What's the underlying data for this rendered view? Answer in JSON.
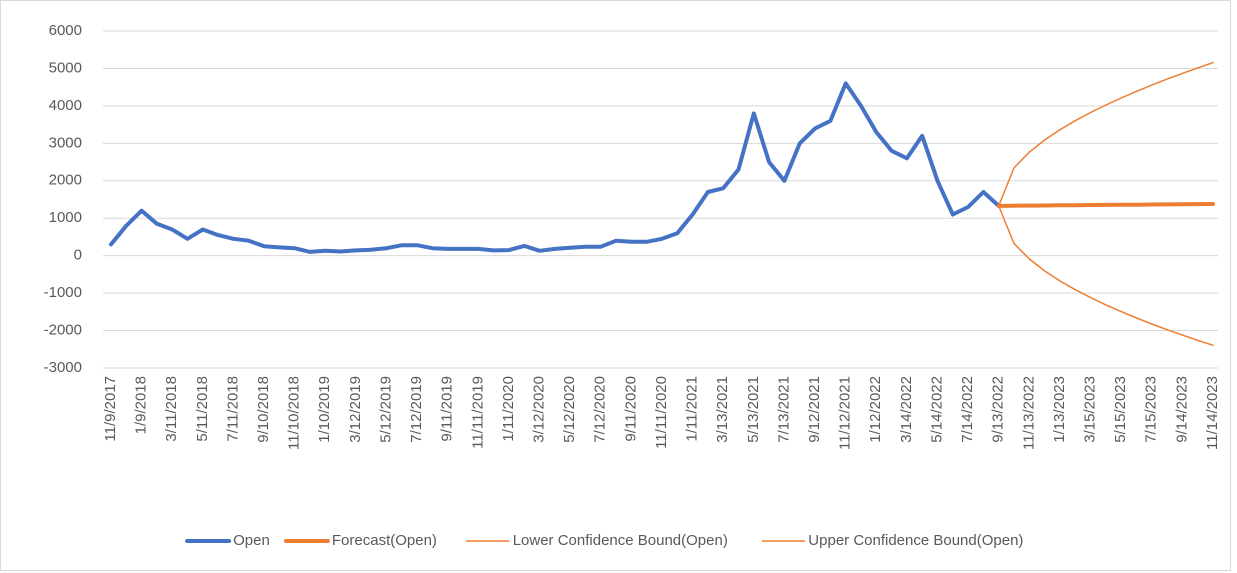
{
  "chart_data": {
    "type": "line",
    "categories": [
      "11/9/2017",
      null,
      "1/9/2018",
      null,
      "3/11/2018",
      null,
      "5/11/2018",
      null,
      "7/11/2018",
      null,
      "9/10/2018",
      null,
      "11/10/2018",
      null,
      "1/10/2019",
      null,
      "3/12/2019",
      null,
      "5/12/2019",
      null,
      "7/12/2019",
      null,
      "9/11/2019",
      null,
      "11/11/2019",
      null,
      "1/11/2020",
      null,
      "3/12/2020",
      null,
      "5/12/2020",
      null,
      "7/12/2020",
      null,
      "9/11/2020",
      null,
      "11/11/2020",
      null,
      "1/11/2021",
      null,
      "3/13/2021",
      null,
      "5/13/2021",
      null,
      "7/13/2021",
      null,
      "9/12/2021",
      null,
      "11/12/2021",
      null,
      "1/12/2022",
      null,
      "3/14/2022",
      null,
      "5/14/2022",
      null,
      "7/14/2022",
      null,
      "9/13/2022",
      null,
      "11/13/2022",
      null,
      "1/13/2023",
      null,
      "3/15/2023",
      null,
      "5/15/2023",
      null,
      "7/15/2023",
      null,
      "9/14/2023",
      null,
      "11/14/2023"
    ],
    "series": [
      {
        "name": "Open",
        "color": "#4472c4",
        "width": 4,
        "values": [
          300,
          800,
          1200,
          850,
          700,
          450,
          700,
          550,
          450,
          400,
          250,
          220,
          200,
          100,
          130,
          110,
          140,
          160,
          200,
          280,
          280,
          200,
          180,
          180,
          180,
          140,
          150,
          260,
          130,
          180,
          210,
          240,
          240,
          400,
          370,
          370,
          450,
          600,
          1100,
          1700,
          1800,
          2300,
          3800,
          2500,
          2000,
          3000,
          3400,
          3600,
          4600,
          4000,
          3300,
          2800,
          2600,
          3200,
          2000,
          1100,
          1300,
          1700,
          1330,
          null,
          null,
          null,
          null,
          null,
          null,
          null,
          null,
          null,
          null,
          null,
          null,
          null,
          null
        ]
      },
      {
        "name": "Forecast(Open)",
        "color": "#ed7d31",
        "width": 4,
        "values": [
          null,
          null,
          null,
          null,
          null,
          null,
          null,
          null,
          null,
          null,
          null,
          null,
          null,
          null,
          null,
          null,
          null,
          null,
          null,
          null,
          null,
          null,
          null,
          null,
          null,
          null,
          null,
          null,
          null,
          null,
          null,
          null,
          null,
          null,
          null,
          null,
          null,
          null,
          null,
          null,
          null,
          null,
          null,
          null,
          null,
          null,
          null,
          null,
          null,
          null,
          null,
          null,
          null,
          null,
          null,
          null,
          null,
          null,
          1330,
          1334,
          1337,
          1341,
          1344,
          1348,
          1352,
          1355,
          1359,
          1362,
          1366,
          1370,
          1373,
          1377,
          1380
        ]
      },
      {
        "name": "Lower Confidence Bound(Open)",
        "color": "#ed7d31",
        "width": 1.5,
        "values": [
          null,
          null,
          null,
          null,
          null,
          null,
          null,
          null,
          null,
          null,
          null,
          null,
          null,
          null,
          null,
          null,
          null,
          null,
          null,
          null,
          null,
          null,
          null,
          null,
          null,
          null,
          null,
          null,
          null,
          null,
          null,
          null,
          null,
          null,
          null,
          null,
          null,
          null,
          null,
          null,
          null,
          null,
          null,
          null,
          null,
          null,
          null,
          null,
          null,
          null,
          null,
          null,
          null,
          null,
          null,
          null,
          null,
          null,
          1330,
          325,
          -90,
          -406,
          -674,
          -908,
          -1119,
          -1314,
          -1494,
          -1665,
          -1824,
          -1976,
          -2122,
          -2260,
          -2395
        ]
      },
      {
        "name": "Upper Confidence Bound(Open)",
        "color": "#ed7d31",
        "width": 1.5,
        "values": [
          null,
          null,
          null,
          null,
          null,
          null,
          null,
          null,
          null,
          null,
          null,
          null,
          null,
          null,
          null,
          null,
          null,
          null,
          null,
          null,
          null,
          null,
          null,
          null,
          null,
          null,
          null,
          null,
          null,
          null,
          null,
          null,
          null,
          null,
          null,
          null,
          null,
          null,
          null,
          null,
          null,
          null,
          null,
          null,
          null,
          null,
          null,
          null,
          null,
          null,
          null,
          null,
          null,
          null,
          null,
          null,
          null,
          null,
          1330,
          2343,
          2764,
          3088,
          3362,
          3604,
          3823,
          4024,
          4212,
          4389,
          4556,
          4716,
          4868,
          5014,
          5155
        ]
      }
    ],
    "ylim": [
      -3000,
      6000
    ],
    "yticks": [
      -3000,
      -2000,
      -1000,
      0,
      1000,
      2000,
      3000,
      4000,
      5000,
      6000
    ],
    "grid": true,
    "legend": "bottom"
  }
}
